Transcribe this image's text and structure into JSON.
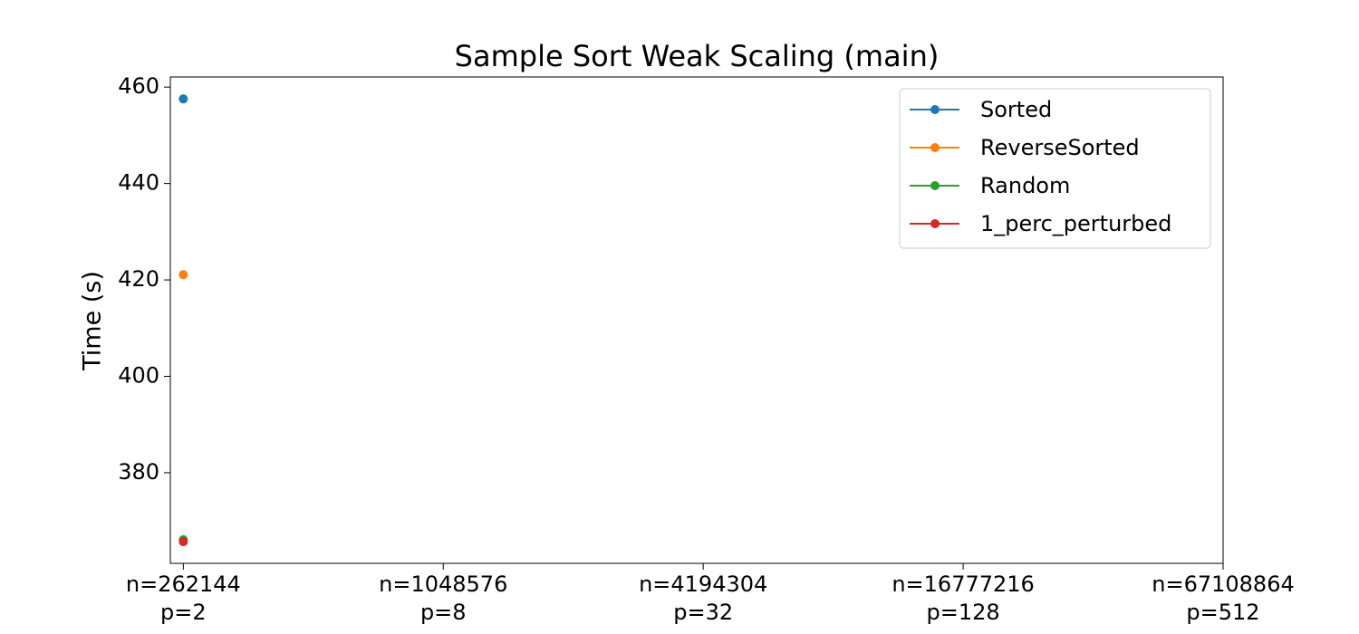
{
  "chart_data": {
    "type": "line",
    "title": "Sample Sort Weak Scaling (main)",
    "y_label": "Time (s)",
    "categories": [
      "n=262144\np=2",
      "n=1048576\np=8",
      "n=4194304\np=32",
      "n=16777216\np=128",
      "n=67108864\np=512"
    ],
    "series": [
      {
        "name": "Sorted",
        "color": "#1f77b4",
        "values": [
          457.56,
          null,
          null,
          null,
          null
        ]
      },
      {
        "name": "ReverseSorted",
        "color": "#ff7f0e",
        "values": [
          421.1,
          null,
          null,
          null,
          null
        ]
      },
      {
        "name": "Random",
        "color": "#2ca02c",
        "values": [
          366.1,
          null,
          null,
          null,
          null
        ]
      },
      {
        "name": "1_perc_perturbed",
        "color": "#d62728",
        "values": [
          365.7,
          null,
          null,
          null,
          null
        ]
      }
    ],
    "ylim": [
      361.2,
      462.1
    ],
    "yticks": [
      380,
      400,
      420,
      440,
      460
    ],
    "legend": "upper right",
    "grid": false
  }
}
